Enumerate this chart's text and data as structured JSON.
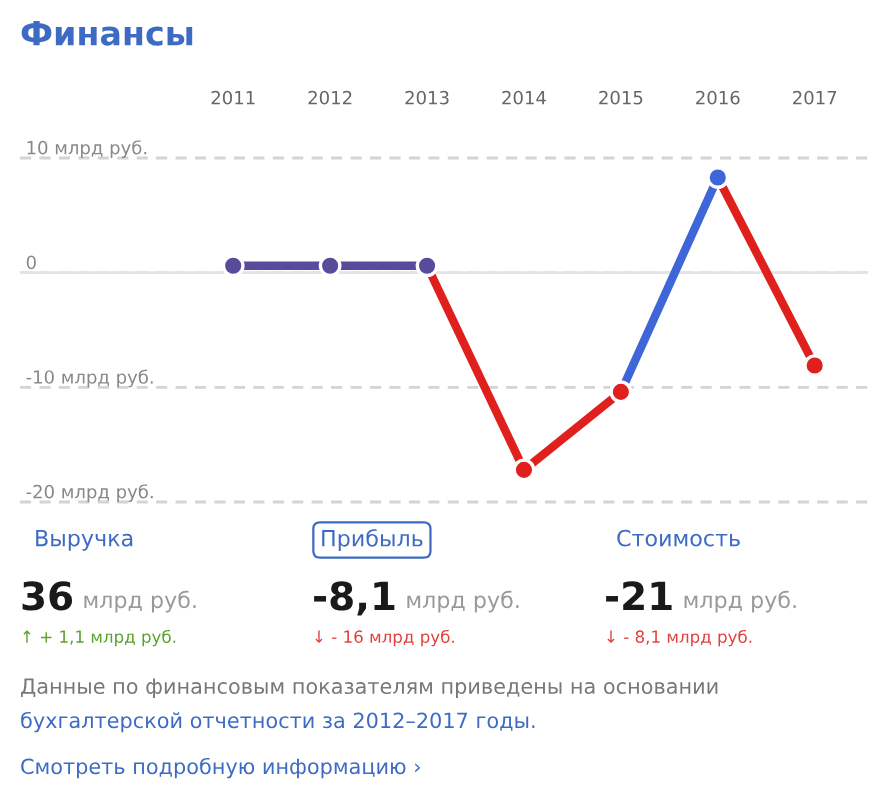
{
  "chart_data": [
    {
      "type": "line",
      "title": "Финансы",
      "categories": [
        "2011",
        "2012",
        "2013",
        "2014",
        "2015",
        "2016",
        "2017"
      ],
      "series": [
        {
          "color": "#e0201c",
          "values": [
            null,
            null,
            null,
            null,
            null,
            8.3,
            -8.1
          ]
        },
        {
          "color": "#3f66d8",
          "values": [
            null,
            null,
            null,
            null,
            -10.4,
            8.3,
            null
          ]
        },
        {
          "color": "#e0201c",
          "values": [
            null,
            null,
            0.6,
            -17.2,
            -10.4,
            null,
            null
          ]
        },
        {
          "color": "#5a4a9c",
          "values": [
            0.6,
            0.6,
            0.6,
            null,
            null,
            null,
            null
          ]
        }
      ],
      "ylim": [
        -20,
        10
      ],
      "yticks": [
        {
          "value": 10,
          "label": "10 млрд руб."
        },
        0,
        {
          "value": -10,
          "label": "-10 млрд руб."
        },
        {
          "value": -20,
          "label": "-20 млрд руб."
        }
      ],
      "ref_lines": [
        {
          "axis": "y",
          "value": 0,
          "color": "#e4e4e4"
        }
      ],
      "grid": "y",
      "marker": "circle",
      "line_style": "solid"
    },
    {
      "type": "other",
      "annotations": [
        "Выручка",
        "Прибыль",
        "Стоимость",
        "36",
        "млрд руб.",
        "-8,1",
        "млрд руб.",
        "-21",
        "млрд руб.",
        "↑ + 1,1 млрд руб.",
        "↓ - 16 млрд руб.",
        "↓ - 8,1 млрд руб.",
        "Данные по финансовым показателям приведены на основании",
        "бухгалтерской отчетности за 2012–2017 годы.",
        "Смотреть подробную информацию ›"
      ]
    }
  ]
}
